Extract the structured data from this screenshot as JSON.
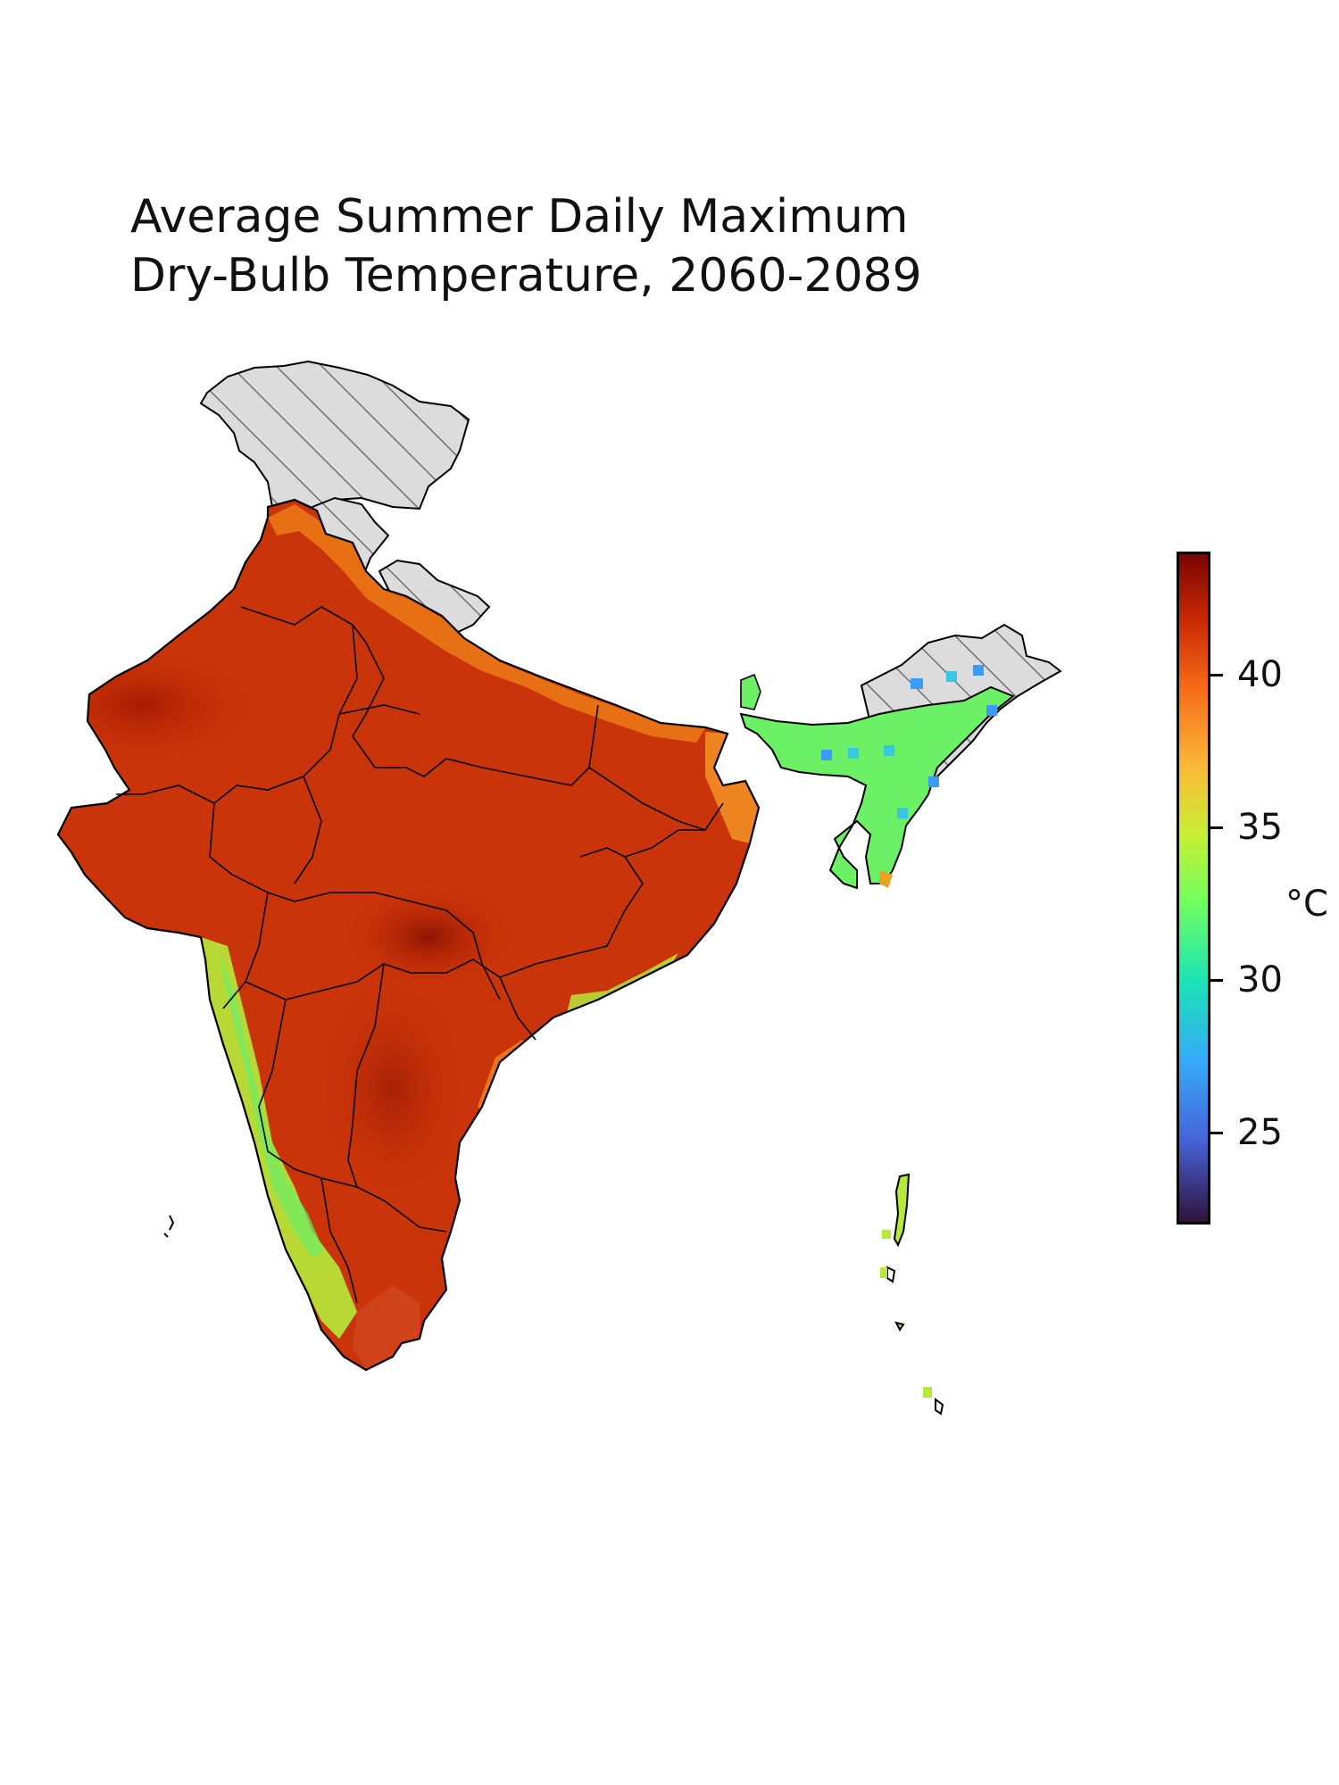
{
  "title": {
    "line1": "Average Summer Daily Maximum",
    "line2": "Dry-Bulb Temperature, 2060-2089"
  },
  "colorbar": {
    "unit": "°C",
    "range": [
      22,
      44
    ],
    "ticks": [
      "25",
      "30",
      "35",
      "40"
    ],
    "colormap": "turbo"
  },
  "map": {
    "region": "India",
    "no_data_style": "gray hatched",
    "colors": {
      "hot": "#c52c05",
      "very_hot": "#9a1a03",
      "warm": "#f08018",
      "mild": "#b6f03a",
      "cool": "#42f07a",
      "no_data": "#d9d9d9"
    }
  }
}
